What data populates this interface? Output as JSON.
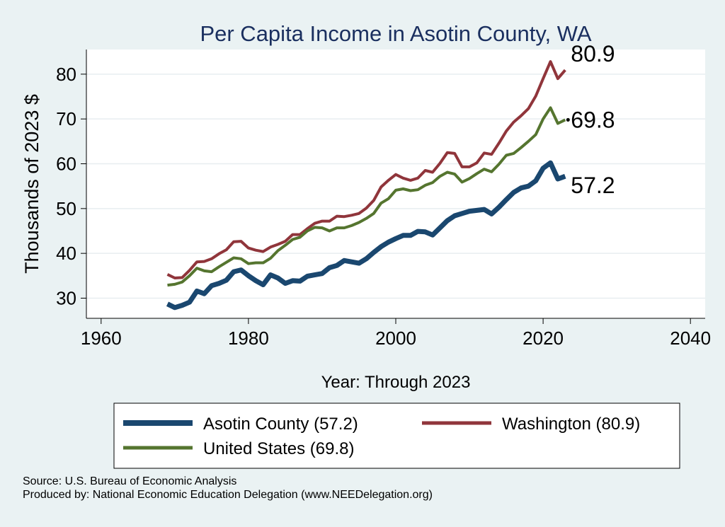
{
  "chart_data": {
    "type": "line",
    "title": "Per Capita Income in Asotin County, WA",
    "xlabel": "Year: Through 2023",
    "ylabel": "Thousands of 2023 $",
    "xlim": [
      1958,
      2042
    ],
    "ylim": [
      25.5,
      85.5
    ],
    "xticks": [
      1960,
      1980,
      2000,
      2020,
      2040
    ],
    "yticks": [
      30,
      40,
      50,
      60,
      70,
      80
    ],
    "grid": true,
    "legend_position": "bottom",
    "x": [
      1969,
      1970,
      1971,
      1972,
      1973,
      1974,
      1975,
      1976,
      1977,
      1978,
      1979,
      1980,
      1981,
      1982,
      1983,
      1984,
      1985,
      1986,
      1987,
      1988,
      1989,
      1990,
      1991,
      1992,
      1993,
      1994,
      1995,
      1996,
      1997,
      1998,
      1999,
      2000,
      2001,
      2002,
      2003,
      2004,
      2005,
      2006,
      2007,
      2008,
      2009,
      2010,
      2011,
      2012,
      2013,
      2014,
      2015,
      2016,
      2017,
      2018,
      2019,
      2020,
      2021,
      2022,
      2023
    ],
    "series": [
      {
        "name": "Asotin County",
        "legend_label": "Asotin County (57.2)",
        "end_label": "57.2",
        "color": "#1a476f",
        "width": 7,
        "values": [
          28.7,
          27.9,
          28.4,
          29.1,
          31.6,
          31.0,
          32.8,
          33.3,
          34.0,
          35.9,
          36.3,
          35.0,
          33.9,
          33.0,
          35.2,
          34.5,
          33.3,
          33.9,
          33.8,
          34.9,
          35.2,
          35.5,
          36.8,
          37.3,
          38.4,
          38.1,
          37.8,
          38.8,
          40.2,
          41.5,
          42.5,
          43.3,
          44.0,
          44.0,
          44.9,
          44.8,
          44.1,
          45.7,
          47.3,
          48.4,
          48.9,
          49.4,
          49.6,
          49.8,
          48.8,
          50.3,
          52.0,
          53.6,
          54.6,
          55.0,
          56.2,
          59.0,
          60.2,
          56.6,
          57.2
        ]
      },
      {
        "name": "Washington",
        "legend_label": "Washington (80.9)",
        "end_label": "80.9",
        "color": "#90353b",
        "width": 4,
        "values": [
          35.3,
          34.5,
          34.6,
          36.2,
          38.1,
          38.2,
          38.8,
          39.9,
          40.8,
          42.6,
          42.7,
          41.2,
          40.7,
          40.4,
          41.4,
          42.0,
          42.7,
          44.2,
          44.2,
          45.5,
          46.7,
          47.2,
          47.2,
          48.3,
          48.2,
          48.5,
          48.9,
          50.1,
          51.8,
          54.8,
          56.3,
          57.6,
          56.8,
          56.3,
          56.8,
          58.5,
          58.1,
          60.1,
          62.5,
          62.3,
          59.3,
          59.3,
          60.2,
          62.4,
          62.1,
          64.6,
          67.3,
          69.3,
          70.7,
          72.3,
          75.1,
          79.0,
          82.8,
          79.0,
          80.9
        ]
      },
      {
        "name": "United States",
        "legend_label": "United States (69.8)",
        "end_label": "69.8",
        "color": "#55752f",
        "width": 4,
        "values": [
          32.9,
          33.1,
          33.6,
          35.0,
          36.7,
          36.1,
          35.9,
          37.0,
          38.0,
          39.0,
          38.8,
          37.7,
          37.9,
          37.9,
          38.9,
          40.6,
          41.8,
          43.1,
          43.6,
          45.0,
          45.8,
          45.7,
          45.0,
          45.7,
          45.7,
          46.2,
          46.9,
          47.8,
          48.9,
          51.2,
          52.2,
          54.1,
          54.4,
          54.0,
          54.2,
          55.2,
          55.8,
          57.2,
          58.1,
          57.7,
          55.9,
          56.7,
          57.8,
          58.8,
          58.2,
          59.9,
          61.9,
          62.3,
          63.6,
          65.0,
          66.5,
          70.0,
          72.5,
          69.0,
          69.8
        ]
      }
    ]
  },
  "footer": {
    "source": "Source: U.S. Bureau of Economic Analysis",
    "produced": "Produced by: National Economic Education Delegation (www.NEEDelegation.org)"
  }
}
